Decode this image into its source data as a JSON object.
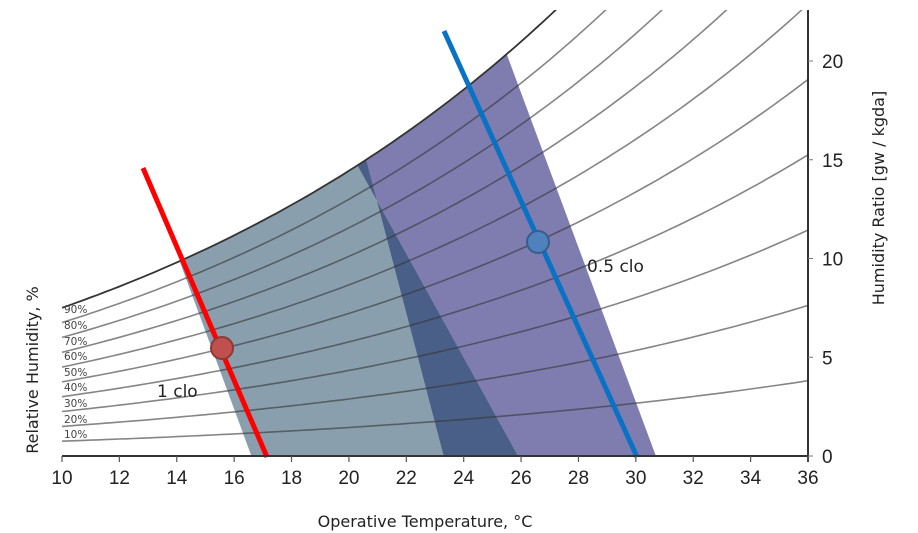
{
  "chart_data": {
    "type": "psychrometric",
    "title": "",
    "xlabel": "Operative Temperature, °C",
    "ylabel_left": "Relative Humidity, %",
    "ylabel_right": "Humidity Ratio [gw / kgda]",
    "x_ticks": [
      "10",
      "12",
      "14",
      "16",
      "18",
      "20",
      "22",
      "24",
      "26",
      "28",
      "30",
      "32",
      "34",
      "36"
    ],
    "y_ticks": [
      "0",
      "5",
      "10",
      "15",
      "20"
    ],
    "xlim": [
      10,
      36
    ],
    "ylim": [
      0,
      22
    ],
    "rh_curves": [
      "10%",
      "20%",
      "30%",
      "40%",
      "50%",
      "60%",
      "70%",
      "80%",
      "90%"
    ],
    "comfort_zones": [
      {
        "name": "1 clo",
        "color": "#8a9fae",
        "bottom_t": [
          16.6,
          23.3
        ],
        "top_t": [
          14.1,
          20.6
        ],
        "line_color": "#ff0000",
        "point": {
          "t": 15.6,
          "w": 5.5
        }
      },
      {
        "name": "0.5 clo",
        "color": "#7f7db0",
        "bottom_t": [
          25.9,
          30.7
        ],
        "top_t": [
          20.3,
          25.5
        ],
        "line_color": "#0a72c4",
        "point": {
          "t": 26.6,
          "w": 10.8
        }
      }
    ],
    "overlap_color": "#4a5f87",
    "annotations": [
      "1 clo",
      "0.5 clo"
    ]
  },
  "labels": {
    "x_title": "Operative Temperature, °C",
    "y_left_title": "Relative Humidity, %",
    "y_right_title": "Humidity Ratio [gw / kgda]",
    "one_clo": "1 clo",
    "half_clo": "0.5 clo"
  }
}
